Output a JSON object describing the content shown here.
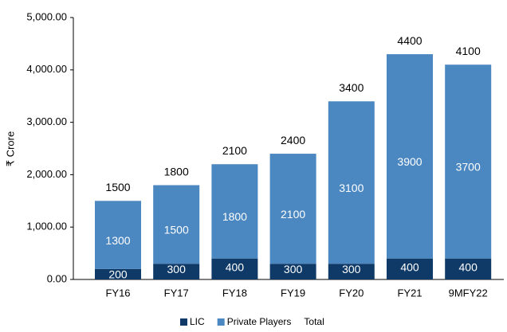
{
  "chart_data": {
    "type": "stacked_bar",
    "y_label": "₹ Crore",
    "categories": [
      "FY16",
      "FY17",
      "FY18",
      "FY19",
      "FY20",
      "FY21",
      "9MFY22"
    ],
    "series": [
      {
        "name": "LIC",
        "color": "#0f3a68",
        "values": [
          200,
          300,
          400,
          300,
          300,
          400,
          400
        ]
      },
      {
        "name": "Private Players",
        "color": "#4b87c0",
        "values": [
          1300,
          1500,
          1800,
          2100,
          3100,
          3900,
          3700
        ]
      },
      {
        "name": "Total",
        "values": [
          1500,
          1800,
          2100,
          2400,
          3400,
          4400,
          4100
        ]
      }
    ],
    "ylim": [
      0,
      5000
    ],
    "yticks": [
      {
        "value": 0,
        "label": "0.00"
      },
      {
        "value": 1000,
        "label": "1,000.00"
      },
      {
        "value": 2000,
        "label": "2,000.00"
      },
      {
        "value": 3000,
        "label": "3,000.00"
      },
      {
        "value": 4000,
        "label": "4,000.00"
      },
      {
        "value": 5000,
        "label": "5,000.00"
      }
    ]
  }
}
